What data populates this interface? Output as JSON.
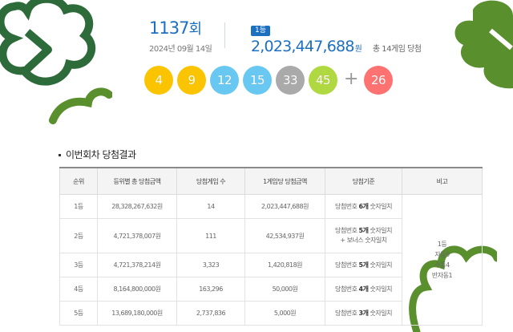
{
  "draw": {
    "round_number": "1137",
    "round_unit": "회",
    "date": "2024년 09월 14일"
  },
  "prize": {
    "rank_badge": "1등",
    "amount": "2,023,447,688",
    "unit": "원",
    "winners": "총 14게임 당첨"
  },
  "numbers": {
    "main": [
      {
        "value": "4",
        "color": "#fbc400"
      },
      {
        "value": "9",
        "color": "#fbc400"
      },
      {
        "value": "12",
        "color": "#69c8f2"
      },
      {
        "value": "15",
        "color": "#69c8f2"
      },
      {
        "value": "33",
        "color": "#aaaaaa"
      },
      {
        "value": "45",
        "color": "#b0d840"
      }
    ],
    "plus": "+",
    "bonus": {
      "value": "26",
      "color": "#ff7272"
    }
  },
  "results": {
    "title": "이번회차 당첨결과",
    "headers": [
      "순위",
      "등위별 총 당첨금액",
      "당첨게임 수",
      "1게임당 당첨금액",
      "당첨기준",
      "비고"
    ],
    "rows": [
      {
        "rank": "1등",
        "total": "28,328,267,632원",
        "games": "14",
        "per_game": "2,023,447,688원",
        "criteria_pre": "당첨번호 ",
        "criteria_bold": "6개",
        "criteria_post": " 숫자일치",
        "criteria_extra": ""
      },
      {
        "rank": "2등",
        "total": "4,721,378,007원",
        "games": "111",
        "per_game": "42,534,937원",
        "criteria_pre": "당첨번호 ",
        "criteria_bold": "5개",
        "criteria_post": " 숫자일치",
        "criteria_extra": "+ 보너스 숫자일치"
      },
      {
        "rank": "3등",
        "total": "4,721,378,214원",
        "games": "3,323",
        "per_game": "1,420,818원",
        "criteria_pre": "당첨번호 ",
        "criteria_bold": "5개",
        "criteria_post": " 숫자일치",
        "criteria_extra": ""
      },
      {
        "rank": "4등",
        "total": "8,164,800,000원",
        "games": "163,296",
        "per_game": "50,000원",
        "criteria_pre": "당첨번호 ",
        "criteria_bold": "4개",
        "criteria_post": " 숫자일치",
        "criteria_extra": ""
      },
      {
        "rank": "5등",
        "total": "13,689,180,000원",
        "games": "2,737,836",
        "per_game": "5,000원",
        "criteria_pre": "당첨번호 ",
        "criteria_bold": "3개",
        "criteria_post": " 숫자일치",
        "criteria_extra": ""
      }
    ],
    "note": [
      "1등",
      "자동9",
      "수동4",
      "반자동1"
    ]
  },
  "colors": {
    "brand_blue": "#1d6fc0",
    "clover_green": "#5a8f2e",
    "clover_dark": "#2e6b3a"
  }
}
